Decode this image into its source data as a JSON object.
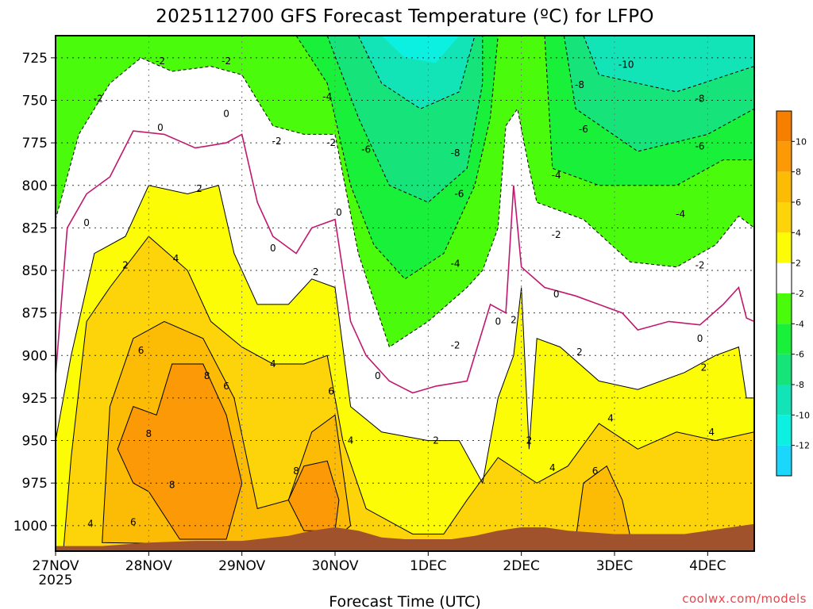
{
  "chart_data": {
    "type": "heatmap",
    "title": "2025112700 GFS Forecast Temperature (ºC) for LFPO",
    "xlabel": "Forecast Time (UTC)",
    "ylabel": "",
    "credit": "coolwx.com/models",
    "x_ticks": [
      {
        "label": "27NOV",
        "sublabel": "2025",
        "hour": 0
      },
      {
        "label": "28NOV",
        "hour": 24
      },
      {
        "label": "29NOV",
        "hour": 48
      },
      {
        "label": "30NOV",
        "hour": 72
      },
      {
        "label": "1DEC",
        "hour": 96
      },
      {
        "label": "2DEC",
        "hour": 120
      },
      {
        "label": "3DEC",
        "hour": 144
      },
      {
        "label": "4DEC",
        "hour": 168
      }
    ],
    "xlim_hours": [
      0,
      180
    ],
    "y_ticks": [
      725,
      750,
      775,
      800,
      825,
      850,
      875,
      900,
      925,
      950,
      975,
      1000
    ],
    "ylim_hpa": [
      712,
      1015
    ],
    "colorbar": {
      "ticks": [
        10,
        8,
        6,
        4,
        2,
        -2,
        -4,
        -6,
        -8,
        -10,
        -12
      ],
      "bins": [
        {
          "min": 10,
          "max": 12,
          "color": "#f77f00"
        },
        {
          "min": 8,
          "max": 10,
          "color": "#fb9a06"
        },
        {
          "min": 6,
          "max": 8,
          "color": "#fcbc06"
        },
        {
          "min": 4,
          "max": 6,
          "color": "#fdd40a"
        },
        {
          "min": 2,
          "max": 4,
          "color": "#fcfc07"
        },
        {
          "min": -2,
          "max": 2,
          "color": "#ffffff"
        },
        {
          "min": -4,
          "max": -2,
          "color": "#4bfb0c"
        },
        {
          "min": -6,
          "max": -4,
          "color": "#18f03a"
        },
        {
          "min": -8,
          "max": -6,
          "color": "#17e37b"
        },
        {
          "min": -10,
          "max": -8,
          "color": "#12e4b8"
        },
        {
          "min": -12,
          "max": -10,
          "color": "#0cf0e2"
        },
        {
          "min": -14,
          "max": -12,
          "color": "#1ad7fb"
        }
      ]
    },
    "surface_color": "#a0522d",
    "surface_pressure_hpa": [
      {
        "h": 0,
        "p": 1012
      },
      {
        "h": 12,
        "p": 1012
      },
      {
        "h": 24,
        "p": 1010
      },
      {
        "h": 36,
        "p": 1009
      },
      {
        "h": 48,
        "p": 1009
      },
      {
        "h": 60,
        "p": 1006
      },
      {
        "h": 66,
        "p": 1003
      },
      {
        "h": 72,
        "p": 1001
      },
      {
        "h": 78,
        "p": 1003
      },
      {
        "h": 84,
        "p": 1007
      },
      {
        "h": 90,
        "p": 1008
      },
      {
        "h": 96,
        "p": 1008
      },
      {
        "h": 102,
        "p": 1008
      },
      {
        "h": 108,
        "p": 1006
      },
      {
        "h": 114,
        "p": 1003
      },
      {
        "h": 120,
        "p": 1001
      },
      {
        "h": 126,
        "p": 1001
      },
      {
        "h": 132,
        "p": 1003
      },
      {
        "h": 138,
        "p": 1004
      },
      {
        "h": 144,
        "p": 1005
      },
      {
        "h": 150,
        "p": 1005
      },
      {
        "h": 156,
        "p": 1005
      },
      {
        "h": 162,
        "p": 1005
      },
      {
        "h": 168,
        "p": 1003
      },
      {
        "h": 174,
        "p": 1001
      },
      {
        "h": 180,
        "p": 999
      }
    ],
    "isotherm_levels_hpa": {
      "0C": [
        {
          "h": 0,
          "p": 912
        },
        {
          "h": 3,
          "p": 825
        },
        {
          "h": 8,
          "p": 805
        },
        {
          "h": 14,
          "p": 795
        },
        {
          "h": 20,
          "p": 768
        },
        {
          "h": 28,
          "p": 770
        },
        {
          "h": 36,
          "p": 778
        },
        {
          "h": 44,
          "p": 775
        },
        {
          "h": 48,
          "p": 770
        },
        {
          "h": 52,
          "p": 810
        },
        {
          "h": 56,
          "p": 830
        },
        {
          "h": 62,
          "p": 840
        },
        {
          "h": 66,
          "p": 825
        },
        {
          "h": 72,
          "p": 820
        },
        {
          "h": 76,
          "p": 880
        },
        {
          "h": 80,
          "p": 900
        },
        {
          "h": 86,
          "p": 915
        },
        {
          "h": 92,
          "p": 922
        },
        {
          "h": 98,
          "p": 918
        },
        {
          "h": 106,
          "p": 915
        },
        {
          "h": 112,
          "p": 870
        },
        {
          "h": 116,
          "p": 875
        },
        {
          "h": 118,
          "p": 800
        },
        {
          "h": 120,
          "p": 848
        },
        {
          "h": 126,
          "p": 860
        },
        {
          "h": 134,
          "p": 865
        },
        {
          "h": 146,
          "p": 875
        },
        {
          "h": 150,
          "p": 885
        },
        {
          "h": 158,
          "p": 880
        },
        {
          "h": 166,
          "p": 882
        },
        {
          "h": 172,
          "p": 870
        },
        {
          "h": 176,
          "p": 860
        },
        {
          "h": 178,
          "p": 878
        },
        {
          "h": 180,
          "p": 880
        }
      ],
      "minus2C": [
        {
          "h": 0,
          "p": 820
        },
        {
          "h": 6,
          "p": 770
        },
        {
          "h": 14,
          "p": 740
        },
        {
          "h": 22,
          "p": 725
        },
        {
          "h": 30,
          "p": 733
        },
        {
          "h": 40,
          "p": 730
        },
        {
          "h": 48,
          "p": 735
        },
        {
          "h": 56,
          "p": 765
        },
        {
          "h": 64,
          "p": 770
        },
        {
          "h": 72,
          "p": 770
        },
        {
          "h": 78,
          "p": 840
        },
        {
          "h": 86,
          "p": 895
        },
        {
          "h": 96,
          "p": 880
        },
        {
          "h": 106,
          "p": 860
        },
        {
          "h": 110,
          "p": 850
        },
        {
          "h": 114,
          "p": 825
        },
        {
          "h": 116,
          "p": 765
        },
        {
          "h": 119,
          "p": 755
        },
        {
          "h": 122,
          "p": 790
        },
        {
          "h": 124,
          "p": 810
        },
        {
          "h": 136,
          "p": 820
        },
        {
          "h": 148,
          "p": 845
        },
        {
          "h": 160,
          "p": 848
        },
        {
          "h": 170,
          "p": 835
        },
        {
          "h": 176,
          "p": 818
        },
        {
          "h": 180,
          "p": 825
        }
      ]
    },
    "contour_labels": [
      {
        "text": "-2",
        "h": 27,
        "p": 727
      },
      {
        "text": "-2",
        "h": 44,
        "p": 727
      },
      {
        "text": "-2",
        "h": 11,
        "p": 749
      },
      {
        "text": "-4",
        "h": 70,
        "p": 748
      },
      {
        "text": "-2",
        "h": 57,
        "p": 774
      },
      {
        "text": "-2",
        "h": 71,
        "p": 775
      },
      {
        "text": "-6",
        "h": 80,
        "p": 779
      },
      {
        "text": "-8",
        "h": 103,
        "p": 781
      },
      {
        "text": "-6",
        "h": 104,
        "p": 805
      },
      {
        "text": "-10",
        "h": 147,
        "p": 729
      },
      {
        "text": "-8",
        "h": 135,
        "p": 741
      },
      {
        "text": "-8",
        "h": 166,
        "p": 749
      },
      {
        "text": "-6",
        "h": 136,
        "p": 767
      },
      {
        "text": "-6",
        "h": 166,
        "p": 777
      },
      {
        "text": "-4",
        "h": 129,
        "p": 794
      },
      {
        "text": "-4",
        "h": 161,
        "p": 817
      },
      {
        "text": "-4",
        "h": 103,
        "p": 846
      },
      {
        "text": "-2",
        "h": 103,
        "p": 894
      },
      {
        "text": "-2",
        "h": 129,
        "p": 829
      },
      {
        "text": "-2",
        "h": 166,
        "p": 847
      },
      {
        "text": "0",
        "h": 27,
        "p": 766
      },
      {
        "text": "0",
        "h": 44,
        "p": 758
      },
      {
        "text": "0",
        "h": 8,
        "p": 822
      },
      {
        "text": "0",
        "h": 56,
        "p": 837
      },
      {
        "text": "0",
        "h": 73,
        "p": 816
      },
      {
        "text": "0",
        "h": 83,
        "p": 912
      },
      {
        "text": "0",
        "h": 114,
        "p": 880
      },
      {
        "text": "0",
        "h": 129,
        "p": 864
      },
      {
        "text": "0",
        "h": 166,
        "p": 890
      },
      {
        "text": "2",
        "h": 37,
        "p": 802
      },
      {
        "text": "2",
        "h": 18,
        "p": 847
      },
      {
        "text": "2",
        "h": 67,
        "p": 851
      },
      {
        "text": "2",
        "h": 118,
        "p": 879
      },
      {
        "text": "2",
        "h": 135,
        "p": 898
      },
      {
        "text": "2",
        "h": 167,
        "p": 907
      },
      {
        "text": "2",
        "h": 98,
        "p": 950
      },
      {
        "text": "2",
        "h": 122,
        "p": 950
      },
      {
        "text": "4",
        "h": 31,
        "p": 843
      },
      {
        "text": "4",
        "h": 56,
        "p": 905
      },
      {
        "text": "4",
        "h": 76,
        "p": 950
      },
      {
        "text": "4",
        "h": 128,
        "p": 966
      },
      {
        "text": "4",
        "h": 143,
        "p": 937
      },
      {
        "text": "4",
        "h": 169,
        "p": 945
      },
      {
        "text": "4",
        "h": 9,
        "p": 999
      },
      {
        "text": "6",
        "h": 22,
        "p": 897
      },
      {
        "text": "6",
        "h": 44,
        "p": 918
      },
      {
        "text": "6",
        "h": 71,
        "p": 921
      },
      {
        "text": "6",
        "h": 20,
        "p": 998
      },
      {
        "text": "6",
        "h": 139,
        "p": 968
      },
      {
        "text": "8",
        "h": 24,
        "p": 946
      },
      {
        "text": "8",
        "h": 39,
        "p": 912
      },
      {
        "text": "8",
        "h": 30,
        "p": 976
      },
      {
        "text": "8",
        "h": 62,
        "p": 968
      }
    ]
  }
}
